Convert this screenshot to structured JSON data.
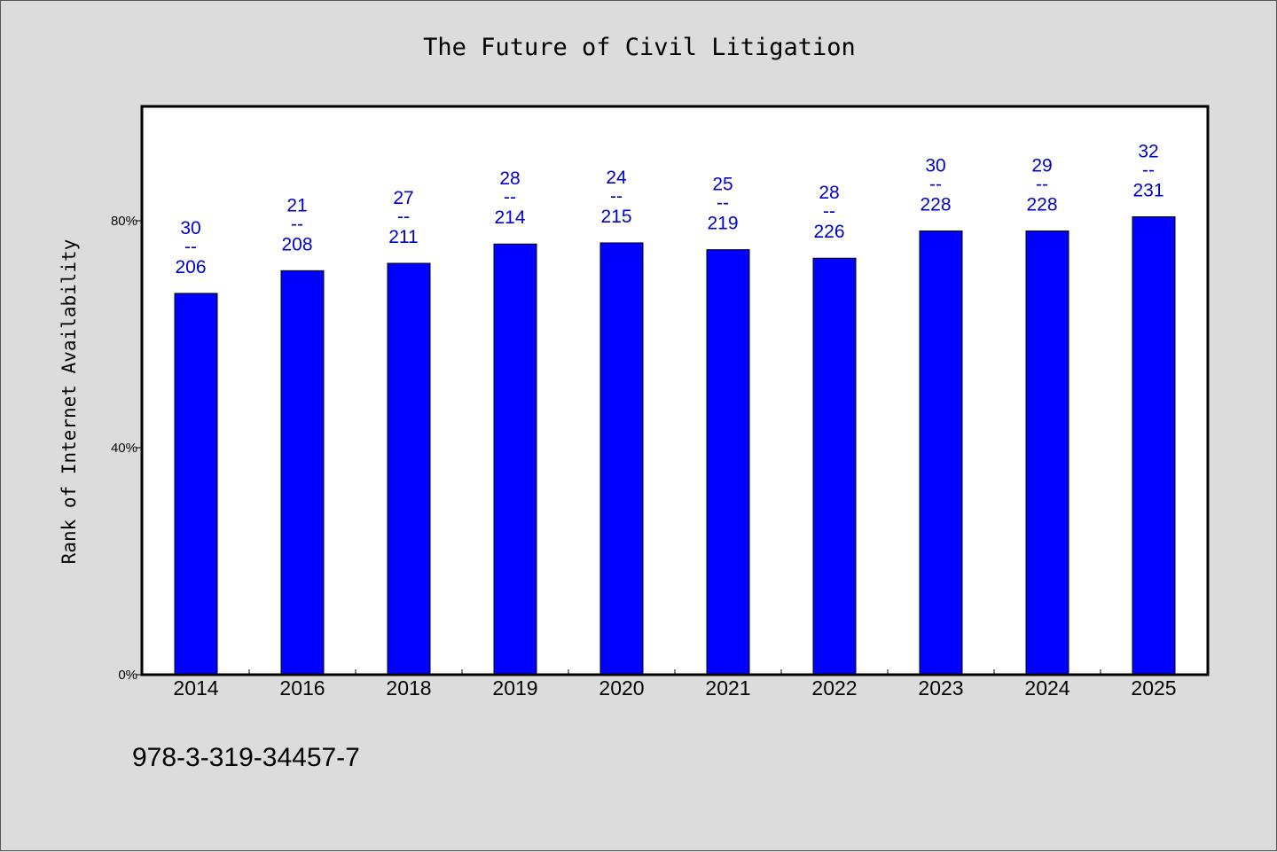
{
  "chart_data": {
    "type": "bar",
    "title": "The Future of Civil Litigation",
    "xlabel": "",
    "ylabel": "Rank of Internet Availability",
    "ylim": [
      0,
      100
    ],
    "yticks": [
      {
        "value": 0,
        "label": "0%"
      },
      {
        "value": 40,
        "label": "40%"
      },
      {
        "value": 80,
        "label": "80%"
      }
    ],
    "categories": [
      "2014",
      "2016",
      "2018",
      "2019",
      "2020",
      "2021",
      "2022",
      "2023",
      "2024",
      "2025"
    ],
    "values": [
      67.2,
      71.2,
      72.5,
      75.9,
      76.1,
      74.9,
      73.4,
      78.2,
      78.2,
      80.7
    ],
    "data_labels": [
      {
        "top": "30",
        "mid": "--",
        "bottom": "206"
      },
      {
        "top": "21",
        "mid": "--",
        "bottom": "208"
      },
      {
        "top": "27",
        "mid": "--",
        "bottom": "211"
      },
      {
        "top": "28",
        "mid": "--",
        "bottom": "214"
      },
      {
        "top": "24",
        "mid": "--",
        "bottom": "215"
      },
      {
        "top": "25",
        "mid": "--",
        "bottom": "219"
      },
      {
        "top": "28",
        "mid": "--",
        "bottom": "226"
      },
      {
        "top": "30",
        "mid": "--",
        "bottom": "228"
      },
      {
        "top": "29",
        "mid": "--",
        "bottom": "228"
      },
      {
        "top": "32",
        "mid": "--",
        "bottom": "231"
      }
    ],
    "grid": false,
    "legend": "none",
    "bar_color": "#0000ff",
    "label_color": "#0000cc"
  },
  "footnote": "978-3-319-34457-7"
}
